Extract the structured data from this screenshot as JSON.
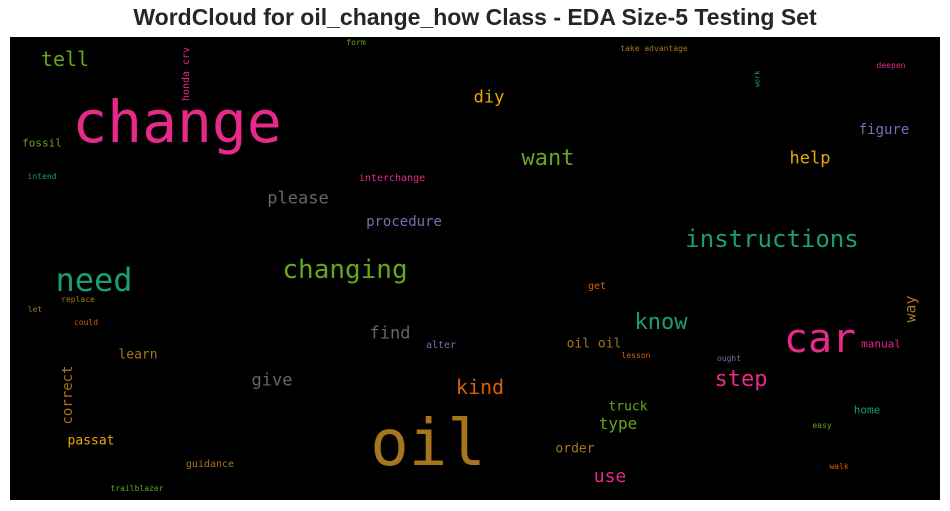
{
  "chart_data": {
    "type": "wordcloud",
    "title": "WordCloud for oil_change_how Class - EDA Size-5 Testing Set",
    "background": "#000000",
    "words": [
      {
        "text": "change",
        "color": "#e7298a",
        "size": 58
      },
      {
        "text": "oil",
        "color": "#a6761d",
        "size": 64
      },
      {
        "text": "car",
        "color": "#e7298a",
        "size": 40
      },
      {
        "text": "need",
        "color": "#1b9e77",
        "size": 32
      },
      {
        "text": "changing",
        "color": "#66a61e",
        "size": 26
      },
      {
        "text": "instructions",
        "color": "#1b9e77",
        "size": 24
      },
      {
        "text": "want",
        "color": "#66a61e",
        "size": 22
      },
      {
        "text": "know",
        "color": "#1b9e77",
        "size": 22
      },
      {
        "text": "step",
        "color": "#e7298a",
        "size": 22
      },
      {
        "text": "tell",
        "color": "#66a61e",
        "size": 20
      },
      {
        "text": "kind",
        "color": "#d95f02",
        "size": 20
      },
      {
        "text": "please",
        "color": "#666666",
        "size": 17
      },
      {
        "text": "find",
        "color": "#666666",
        "size": 17
      },
      {
        "text": "give",
        "color": "#666666",
        "size": 17
      },
      {
        "text": "diy",
        "color": "#e6ab02",
        "size": 17
      },
      {
        "text": "help",
        "color": "#e6ab02",
        "size": 17
      },
      {
        "text": "use",
        "color": "#e7298a",
        "size": 18
      },
      {
        "text": "type",
        "color": "#66a61e",
        "size": 16
      },
      {
        "text": "figure",
        "color": "#7570b3",
        "size": 14
      },
      {
        "text": "procedure",
        "color": "#7570b3",
        "size": 14
      },
      {
        "text": "way",
        "color": "#a6761d",
        "size": 15,
        "vertical": true
      },
      {
        "text": "correct",
        "color": "#a6761d",
        "size": 14,
        "vertical": true
      },
      {
        "text": "passat",
        "color": "#e6ab02",
        "size": 13
      },
      {
        "text": "learn",
        "color": "#a6761d",
        "size": 13
      },
      {
        "text": "oil oil",
        "color": "#a6761d",
        "size": 13
      },
      {
        "text": "truck",
        "color": "#66a61e",
        "size": 13
      },
      {
        "text": "order",
        "color": "#a6761d",
        "size": 13
      },
      {
        "text": "home",
        "color": "#1b9e77",
        "size": 11
      },
      {
        "text": "manual",
        "color": "#e7298a",
        "size": 11
      },
      {
        "text": "fossil",
        "color": "#66a61e",
        "size": 11
      },
      {
        "text": "guidance",
        "color": "#a6761d",
        "size": 10
      },
      {
        "text": "interchange",
        "color": "#e7298a",
        "size": 10
      },
      {
        "text": "alter",
        "color": "#7570b3",
        "size": 10
      },
      {
        "text": "get",
        "color": "#d95f02",
        "size": 10
      },
      {
        "text": "honda crv",
        "color": "#e7298a",
        "size": 10,
        "vertical": true
      },
      {
        "text": "take advantage",
        "color": "#a6761d",
        "size": 8
      },
      {
        "text": "deepen",
        "color": "#e7298a",
        "size": 8
      },
      {
        "text": "form",
        "color": "#66a61e",
        "size": 8
      },
      {
        "text": "work",
        "color": "#1b9e77",
        "size": 7,
        "vertical": true
      },
      {
        "text": "intend",
        "color": "#1b9e77",
        "size": 8
      },
      {
        "text": "replace",
        "color": "#a6761d",
        "size": 8
      },
      {
        "text": "let",
        "color": "#a6761d",
        "size": 8
      },
      {
        "text": "could",
        "color": "#d95f02",
        "size": 8
      },
      {
        "text": "lesson",
        "color": "#d95f02",
        "size": 8
      },
      {
        "text": "ought",
        "color": "#7570b3",
        "size": 8
      },
      {
        "text": "easy",
        "color": "#66a61e",
        "size": 8
      },
      {
        "text": "walk",
        "color": "#d95f02",
        "size": 8
      },
      {
        "text": "trailblazer",
        "color": "#66a61e",
        "size": 8
      }
    ]
  }
}
